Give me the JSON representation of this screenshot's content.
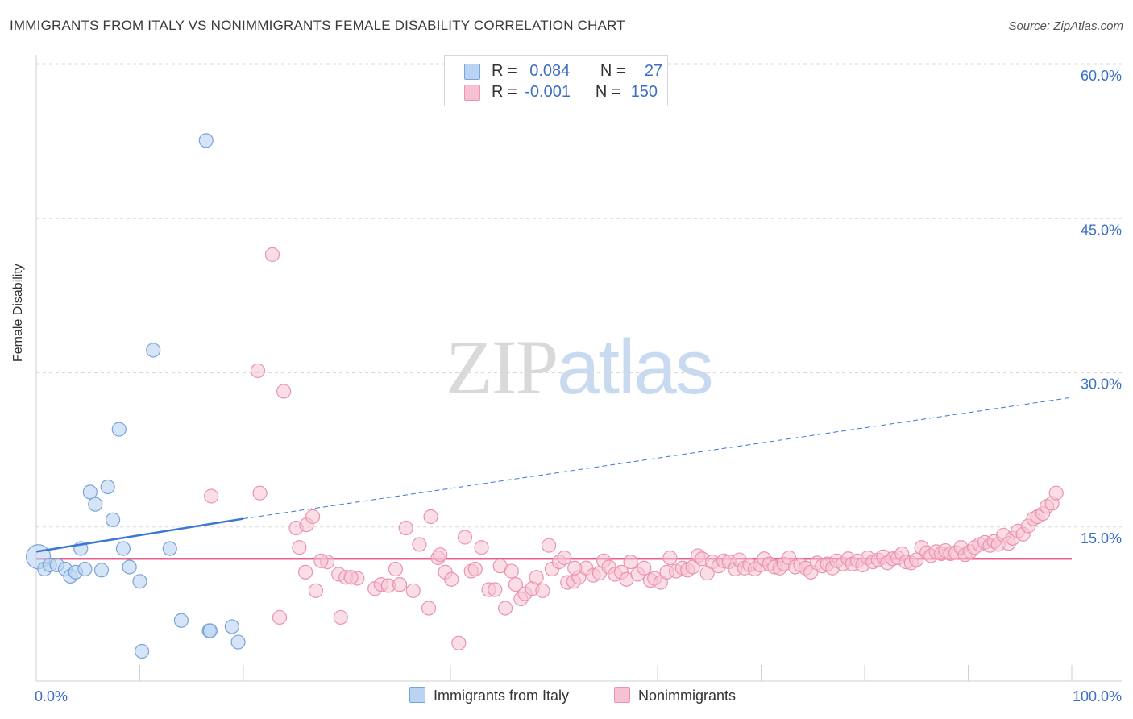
{
  "title": "IMMIGRANTS FROM ITALY VS NONIMMIGRANTS FEMALE DISABILITY CORRELATION CHART",
  "source": "Source: ZipAtlas.com",
  "watermark": {
    "zip": "ZIP",
    "atlas": "atlas"
  },
  "colors": {
    "blue_fill": "#b9d3f2",
    "blue_stroke": "#7aa3d8",
    "blue_line": "#3a78d2",
    "pink_fill": "#f6c2d2",
    "pink_stroke": "#eb93b0",
    "pink_line": "#e8608d",
    "grid": "#d8d8d8",
    "axis_label": "#3c6fc4"
  },
  "legend_top": {
    "blue": {
      "r_label": "R =",
      "r_value": "0.084",
      "n_label": "N =",
      "n_value": "27"
    },
    "pink": {
      "r_label": "R =",
      "r_value": "-0.001",
      "n_label": "N =",
      "n_value": "150"
    }
  },
  "legend_bottom": {
    "blue": "Immigrants from Italy",
    "pink": "Nonimmigrants"
  },
  "chart_data": {
    "type": "scatter",
    "title": "IMMIGRANTS FROM ITALY VS NONIMMIGRANTS FEMALE DISABILITY CORRELATION CHART",
    "xlabel": "",
    "ylabel": "Female Disability",
    "xlim": [
      0,
      100
    ],
    "ylim": [
      0,
      63
    ],
    "x_tick_labels": [
      "0.0%",
      "100.0%"
    ],
    "y_ticks": [
      15,
      30,
      45,
      60
    ],
    "y_tick_labels": [
      "15.0%",
      "30.0%",
      "45.0%",
      "60.0%"
    ],
    "legend": "top-center",
    "series": [
      {
        "name": "Immigrants from Italy",
        "r": 0.084,
        "n": 27,
        "trend": {
          "x0": 0,
          "y0": 12.6,
          "x1": 20,
          "y1": 15.8,
          "dashed_to_x": 100,
          "dashed_to_y": 27.6
        },
        "points": [
          [
            0.2,
            12.1
          ],
          [
            0.8,
            10.9
          ],
          [
            1.3,
            11.3
          ],
          [
            2.0,
            11.3
          ],
          [
            2.8,
            10.9
          ],
          [
            3.3,
            10.2
          ],
          [
            3.8,
            10.6
          ],
          [
            4.3,
            12.9
          ],
          [
            4.7,
            10.9
          ],
          [
            5.2,
            18.4
          ],
          [
            5.7,
            17.2
          ],
          [
            6.3,
            10.8
          ],
          [
            6.9,
            18.9
          ],
          [
            7.4,
            15.7
          ],
          [
            8.0,
            24.5
          ],
          [
            8.4,
            12.9
          ],
          [
            9.0,
            11.1
          ],
          [
            10.0,
            9.7
          ],
          [
            11.3,
            32.2
          ],
          [
            12.9,
            12.9
          ],
          [
            14.0,
            5.9
          ],
          [
            16.4,
            52.6
          ],
          [
            16.7,
            4.9
          ],
          [
            16.8,
            4.9
          ],
          [
            18.9,
            5.3
          ],
          [
            19.5,
            3.8
          ],
          [
            10.2,
            2.9
          ]
        ]
      },
      {
        "name": "Nonimmigrants",
        "r": -0.001,
        "n": 150,
        "trend": {
          "x0": 0,
          "y0": 11.9,
          "x1": 100,
          "y1": 11.9
        },
        "points": [
          [
            22.8,
            41.5
          ],
          [
            21.4,
            30.2
          ],
          [
            23.9,
            28.2
          ],
          [
            16.9,
            18.0
          ],
          [
            21.6,
            18.3
          ],
          [
            25.1,
            14.9
          ],
          [
            26.1,
            15.2
          ],
          [
            26.7,
            16.0
          ],
          [
            25.4,
            13.0
          ],
          [
            26.0,
            10.6
          ],
          [
            27.0,
            8.8
          ],
          [
            28.1,
            11.6
          ],
          [
            29.2,
            10.4
          ],
          [
            29.9,
            10.1
          ],
          [
            31.0,
            10.0
          ],
          [
            30.4,
            10.1
          ],
          [
            29.4,
            6.2
          ],
          [
            32.7,
            9.0
          ],
          [
            33.3,
            9.4
          ],
          [
            34.0,
            9.3
          ],
          [
            34.7,
            10.9
          ],
          [
            35.1,
            9.4
          ],
          [
            35.7,
            14.9
          ],
          [
            36.4,
            8.8
          ],
          [
            37.0,
            13.3
          ],
          [
            37.9,
            7.1
          ],
          [
            38.1,
            16.0
          ],
          [
            38.8,
            12.0
          ],
          [
            39.5,
            10.6
          ],
          [
            40.1,
            9.9
          ],
          [
            40.8,
            3.7
          ],
          [
            41.4,
            14.0
          ],
          [
            42.0,
            10.7
          ],
          [
            42.4,
            10.9
          ],
          [
            43.0,
            13.0
          ],
          [
            43.7,
            8.9
          ],
          [
            44.3,
            8.9
          ],
          [
            44.8,
            11.2
          ],
          [
            45.3,
            7.1
          ],
          [
            45.9,
            10.7
          ],
          [
            46.3,
            9.4
          ],
          [
            46.8,
            8.0
          ],
          [
            47.2,
            8.5
          ],
          [
            47.9,
            9.0
          ],
          [
            48.3,
            10.1
          ],
          [
            48.9,
            8.8
          ],
          [
            49.5,
            13.2
          ],
          [
            49.8,
            10.9
          ],
          [
            50.5,
            11.6
          ],
          [
            51.0,
            12.0
          ],
          [
            51.3,
            9.6
          ],
          [
            51.9,
            9.7
          ],
          [
            52.4,
            10.1
          ],
          [
            53.1,
            11.0
          ],
          [
            53.8,
            10.3
          ],
          [
            54.4,
            10.5
          ],
          [
            54.8,
            11.7
          ],
          [
            55.3,
            11.1
          ],
          [
            55.9,
            10.4
          ],
          [
            56.5,
            10.6
          ],
          [
            57.0,
            9.9
          ],
          [
            57.4,
            11.6
          ],
          [
            58.1,
            10.4
          ],
          [
            58.7,
            11.0
          ],
          [
            59.3,
            9.8
          ],
          [
            59.7,
            10.0
          ],
          [
            60.3,
            9.6
          ],
          [
            60.9,
            10.6
          ],
          [
            61.2,
            12.0
          ],
          [
            61.8,
            10.7
          ],
          [
            62.4,
            11.0
          ],
          [
            62.9,
            10.8
          ],
          [
            63.4,
            11.1
          ],
          [
            63.9,
            12.2
          ],
          [
            64.3,
            11.9
          ],
          [
            64.8,
            10.5
          ],
          [
            65.3,
            11.6
          ],
          [
            65.9,
            11.2
          ],
          [
            66.4,
            11.7
          ],
          [
            66.9,
            11.6
          ],
          [
            67.5,
            10.9
          ],
          [
            67.9,
            11.8
          ],
          [
            68.4,
            11.0
          ],
          [
            68.9,
            11.3
          ],
          [
            69.4,
            10.9
          ],
          [
            69.9,
            11.3
          ],
          [
            70.3,
            11.9
          ],
          [
            70.8,
            11.4
          ],
          [
            71.3,
            11.1
          ],
          [
            71.8,
            11.0
          ],
          [
            72.2,
            11.4
          ],
          [
            72.7,
            12.0
          ],
          [
            73.3,
            11.1
          ],
          [
            73.8,
            11.3
          ],
          [
            74.3,
            11.0
          ],
          [
            74.8,
            10.6
          ],
          [
            75.4,
            11.5
          ],
          [
            75.9,
            11.2
          ],
          [
            76.4,
            11.4
          ],
          [
            76.9,
            11.0
          ],
          [
            77.3,
            11.7
          ],
          [
            77.9,
            11.4
          ],
          [
            78.4,
            11.9
          ],
          [
            78.8,
            11.4
          ],
          [
            79.3,
            11.7
          ],
          [
            79.8,
            11.3
          ],
          [
            80.3,
            12.0
          ],
          [
            80.8,
            11.6
          ],
          [
            81.3,
            11.8
          ],
          [
            81.8,
            12.1
          ],
          [
            82.2,
            11.5
          ],
          [
            82.7,
            11.9
          ],
          [
            83.2,
            12.0
          ],
          [
            83.6,
            12.4
          ],
          [
            84.0,
            11.6
          ],
          [
            84.5,
            11.5
          ],
          [
            85.0,
            11.8
          ],
          [
            85.5,
            13.0
          ],
          [
            86.0,
            12.5
          ],
          [
            86.4,
            12.2
          ],
          [
            86.9,
            12.6
          ],
          [
            87.4,
            12.4
          ],
          [
            87.8,
            12.7
          ],
          [
            88.3,
            12.4
          ],
          [
            88.8,
            12.5
          ],
          [
            89.3,
            13.0
          ],
          [
            89.7,
            12.3
          ],
          [
            90.2,
            12.6
          ],
          [
            90.6,
            13.0
          ],
          [
            91.1,
            13.3
          ],
          [
            91.6,
            13.5
          ],
          [
            92.1,
            13.2
          ],
          [
            92.5,
            13.6
          ],
          [
            92.9,
            13.3
          ],
          [
            93.4,
            14.2
          ],
          [
            93.9,
            13.4
          ],
          [
            94.3,
            13.9
          ],
          [
            94.8,
            14.6
          ],
          [
            95.3,
            14.3
          ],
          [
            95.8,
            15.1
          ],
          [
            96.3,
            15.8
          ],
          [
            96.7,
            16.0
          ],
          [
            97.2,
            16.3
          ],
          [
            97.6,
            17.0
          ],
          [
            98.1,
            17.3
          ],
          [
            98.5,
            18.3
          ],
          [
            23.5,
            6.2
          ],
          [
            27.5,
            11.7
          ],
          [
            39.0,
            12.3
          ],
          [
            52.0,
            11.0
          ]
        ]
      }
    ]
  }
}
